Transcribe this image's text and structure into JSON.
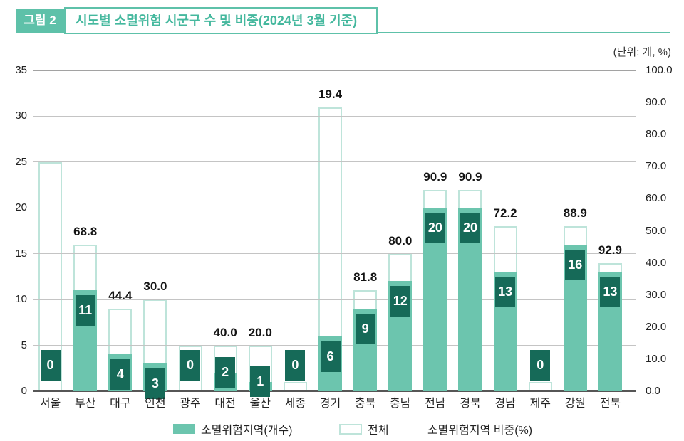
{
  "figure": {
    "tag": "그림 2",
    "title": "시도별 소멸위험 시군구 수 및 비중(2024년 3월 기준)",
    "unit_note": "(단위: 개, %)"
  },
  "colors": {
    "teal": "#5ec1a9",
    "title_text": "#45b89e",
    "bar_fill": "#6cc5ae",
    "bar_outline": "#bee4da",
    "label_box": "#166a58",
    "grid": "#c4c4c4",
    "grid_top": "#a2a2a2",
    "axis": "#565656",
    "pct_text": "#141414"
  },
  "chart_data": {
    "type": "bar",
    "title": "시도별 소멸위험 시군구 수 및 비중(2024년 3월 기준)",
    "categories": [
      "서울",
      "부산",
      "대구",
      "인천",
      "광주",
      "대전",
      "울산",
      "세종",
      "경기",
      "충북",
      "충남",
      "전남",
      "경북",
      "경남",
      "제주",
      "강원",
      "전북"
    ],
    "series": [
      {
        "name": "소멸위험지역(개수)",
        "values": [
          0,
          11,
          4,
          3,
          0,
          2,
          1,
          0,
          6,
          9,
          12,
          20,
          20,
          13,
          0,
          16,
          13
        ]
      },
      {
        "name": "전체",
        "values": [
          25,
          16,
          9,
          10,
          5,
          5,
          5,
          1,
          31,
          11,
          15,
          22,
          22,
          18,
          1,
          18,
          14
        ]
      },
      {
        "name": "소멸위험지역 비중(%)",
        "values": [
          0.0,
          68.8,
          44.4,
          30.0,
          0.0,
          40.0,
          20.0,
          0.0,
          19.4,
          81.8,
          80.0,
          90.9,
          90.9,
          72.2,
          0.0,
          88.9,
          92.9
        ]
      }
    ],
    "pct_labels_shown": [
      "",
      "68.8",
      "44.4",
      "30.0",
      "",
      "40.0",
      "20.0",
      "",
      "19.4",
      "81.8",
      "80.0",
      "90.9",
      "90.9",
      "72.2",
      "",
      "88.9",
      "92.9"
    ],
    "left_axis": {
      "ticks": [
        "0",
        "5",
        "10",
        "15",
        "20",
        "25",
        "30",
        "35"
      ],
      "range": [
        0,
        35
      ]
    },
    "right_axis": {
      "ticks": [
        "0.0",
        "10.0",
        "20.0",
        "30.0",
        "40.0",
        "50.0",
        "60.0",
        "70.0",
        "80.0",
        "90.0",
        "100.0"
      ],
      "range": [
        0,
        100
      ]
    },
    "legend": [
      "소멸위험지역(개수)",
      "전체",
      "소멸위험지역 비중(%)"
    ],
    "legend_position": "bottom",
    "grid": true
  }
}
